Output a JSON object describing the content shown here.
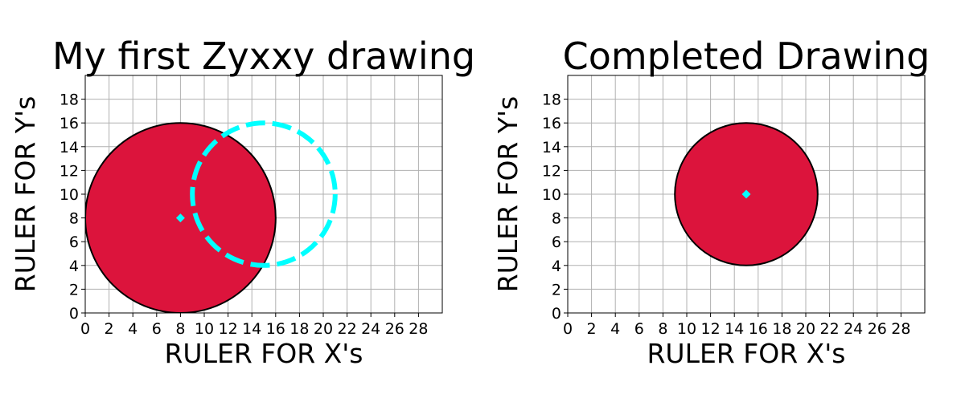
{
  "chart_data": [
    {
      "type": "scatter",
      "title": "My first Zyxxy drawing",
      "xlabel": "RULER FOR X's",
      "ylabel": "RULER FOR Y's",
      "xlim": [
        0,
        30
      ],
      "ylim": [
        0,
        20
      ],
      "xticks": [
        0,
        2,
        4,
        6,
        8,
        10,
        12,
        14,
        16,
        18,
        20,
        22,
        24,
        26,
        28
      ],
      "yticks": [
        0,
        2,
        4,
        6,
        8,
        10,
        12,
        14,
        16,
        18
      ],
      "grid": true,
      "shapes": [
        {
          "kind": "circle",
          "center": [
            8,
            8
          ],
          "radius": 8,
          "fill": "#dc143c",
          "edge": "#000000",
          "style": "solid"
        },
        {
          "kind": "circle",
          "center": [
            15,
            10
          ],
          "radius": 6,
          "fill": "none",
          "edge": "#00ffff",
          "style": "dashed"
        }
      ],
      "points": [
        {
          "x": 8,
          "y": 8,
          "marker": "diamond",
          "color": "#00ffff"
        }
      ]
    },
    {
      "type": "scatter",
      "title": "Completed Drawing",
      "xlabel": "RULER FOR X's",
      "ylabel": "RULER FOR Y's",
      "xlim": [
        0,
        30
      ],
      "ylim": [
        0,
        20
      ],
      "xticks": [
        0,
        2,
        4,
        6,
        8,
        10,
        12,
        14,
        16,
        18,
        20,
        22,
        24,
        26,
        28
      ],
      "yticks": [
        0,
        2,
        4,
        6,
        8,
        10,
        12,
        14,
        16,
        18
      ],
      "grid": true,
      "shapes": [
        {
          "kind": "circle",
          "center": [
            15,
            10
          ],
          "radius": 6,
          "fill": "#dc143c",
          "edge": "#000000",
          "style": "solid"
        }
      ],
      "points": [
        {
          "x": 15,
          "y": 10,
          "marker": "diamond",
          "color": "#00ffff"
        }
      ]
    }
  ]
}
